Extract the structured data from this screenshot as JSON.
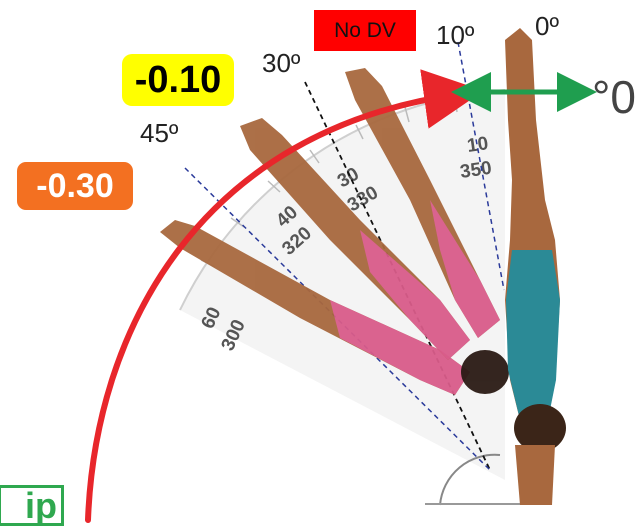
{
  "badges": {
    "no_dv": "No DV",
    "deduction_small": "-0.10",
    "deduction_large": "-0.30",
    "partial_word": "ip"
  },
  "angle_labels": {
    "a0": "0º",
    "a10": "10º",
    "a30": "30º",
    "a45": "45º",
    "zero_big": "°0"
  },
  "protractor_ticks": [
    {
      "top": "10",
      "bottom": "350"
    },
    {
      "top": "30",
      "bottom": "330"
    },
    {
      "top": "40",
      "bottom": "320"
    },
    {
      "top": "60",
      "bottom": "300"
    }
  ],
  "colors": {
    "arc": "#e8262b",
    "arrow_green": "#1f9e4f",
    "no_dv_bg": "#ff0000",
    "yellow_badge": "#ffff00",
    "orange_badge": "#f37021",
    "green_badge_border": "#2fa84f",
    "pink_leotard": "#d95c8a",
    "teal_leotard": "#2b8a96",
    "skin": "#a8683e"
  }
}
